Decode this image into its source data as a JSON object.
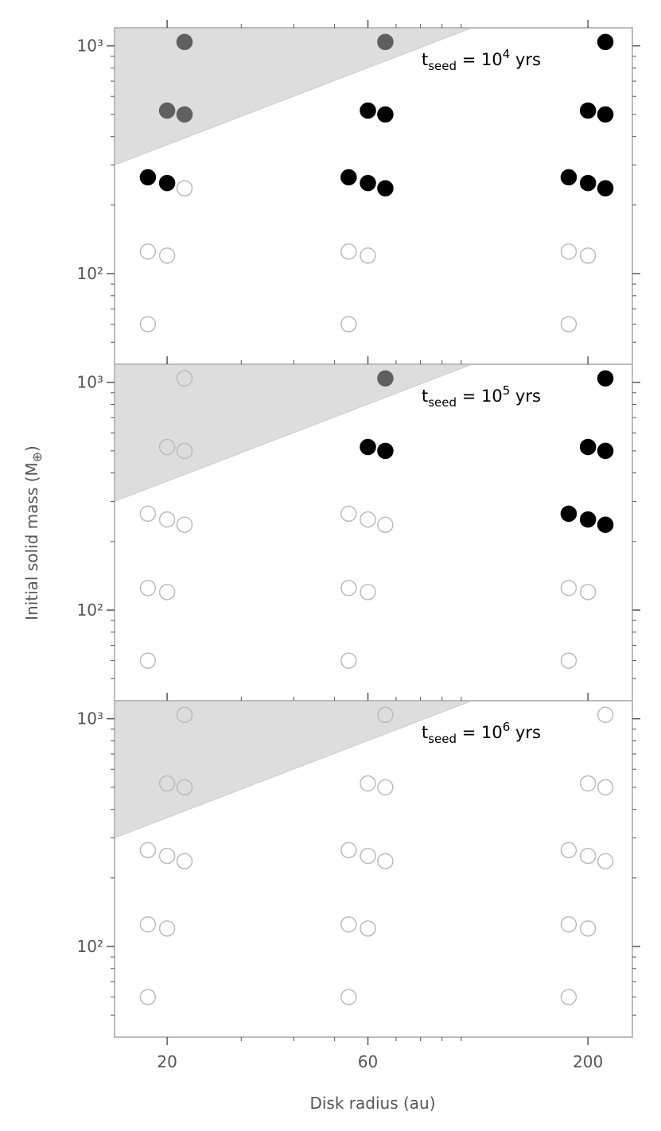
{
  "chart_data": [
    {
      "type": "scatter",
      "xlog": true,
      "ylog": true,
      "xlim": [
        15,
        255
      ],
      "ylim": [
        40,
        1200
      ],
      "xticks": [
        20,
        60,
        200
      ],
      "xminorticks": [
        30,
        40,
        50,
        70,
        80,
        90,
        100
      ],
      "yticks": [
        {
          "value": 100,
          "label": "10²"
        },
        {
          "value": 1000,
          "label": "10³"
        }
      ],
      "yminorticks": [
        50,
        60,
        70,
        80,
        90,
        200,
        300,
        400,
        500,
        600,
        700,
        800,
        900
      ],
      "xticklabels": false,
      "annotation": {
        "base": "t",
        "sub": "seed",
        "mid": " = 10",
        "sup": "4",
        "tail": " yrs"
      },
      "shade": {
        "x": [
          15,
          106
        ],
        "y": [
          300,
          1200
        ],
        "color": "#dddddd"
      },
      "open_edge": "#bbbbbb",
      "x": [
        18,
        18,
        18,
        20,
        20,
        20,
        22,
        22,
        22,
        54,
        54,
        54,
        60,
        60,
        60,
        66,
        66,
        66,
        180,
        180,
        180,
        200,
        200,
        200,
        220,
        220,
        220
      ],
      "y": [
        265,
        125,
        60,
        520,
        250,
        120,
        1040,
        500,
        237,
        265,
        125,
        60,
        520,
        250,
        120,
        1040,
        500,
        237,
        265,
        125,
        60,
        520,
        250,
        120,
        1040,
        500,
        237
      ],
      "fills": [
        "#000000",
        null,
        null,
        "#5f5f5f",
        "#000000",
        null,
        "#5f5f5f",
        "#5f5f5f",
        null,
        "#000000",
        null,
        null,
        "#000000",
        "#000000",
        null,
        "#5f5f5f",
        "#000000",
        "#000000",
        "#000000",
        null,
        null,
        "#000000",
        "#000000",
        null,
        "#000000",
        "#000000",
        "#000000"
      ]
    },
    {
      "type": "scatter",
      "xlog": true,
      "ylog": true,
      "xlim": [
        15,
        255
      ],
      "ylim": [
        40,
        1200
      ],
      "xticks": [
        20,
        60,
        200
      ],
      "xminorticks": [
        30,
        40,
        50,
        70,
        80,
        90,
        100
      ],
      "yticks": [
        {
          "value": 100,
          "label": "10²"
        },
        {
          "value": 1000,
          "label": "10³"
        }
      ],
      "yminorticks": [
        50,
        60,
        70,
        80,
        90,
        200,
        300,
        400,
        500,
        600,
        700,
        800,
        900
      ],
      "xticklabels": false,
      "ylabel": {
        "text": "Initial solid mass (M",
        "sub": "⊕",
        "tail": ")"
      },
      "annotation": {
        "base": "t",
        "sub": "seed",
        "mid": " = 10",
        "sup": "5",
        "tail": " yrs"
      },
      "shade": {
        "x": [
          15,
          106
        ],
        "y": [
          300,
          1200
        ],
        "color": "#dddddd"
      },
      "open_edge": "#bbbbbb",
      "x": [
        18,
        18,
        18,
        20,
        20,
        20,
        22,
        22,
        22,
        54,
        54,
        54,
        60,
        60,
        60,
        66,
        66,
        66,
        180,
        180,
        180,
        200,
        200,
        200,
        220,
        220,
        220
      ],
      "y": [
        265,
        125,
        60,
        520,
        250,
        120,
        1040,
        500,
        237,
        265,
        125,
        60,
        520,
        250,
        120,
        1040,
        500,
        237,
        265,
        125,
        60,
        520,
        250,
        120,
        1040,
        500,
        237
      ],
      "fills": [
        null,
        null,
        null,
        null,
        null,
        null,
        null,
        null,
        null,
        null,
        null,
        null,
        "#000000",
        null,
        null,
        "#5f5f5f",
        "#000000",
        null,
        "#000000",
        null,
        null,
        "#000000",
        "#000000",
        null,
        "#000000",
        "#000000",
        "#000000"
      ]
    },
    {
      "type": "scatter",
      "xlog": true,
      "ylog": true,
      "xlim": [
        15,
        255
      ],
      "ylim": [
        40,
        1200
      ],
      "xticks": [
        20,
        60,
        200
      ],
      "xminorticks": [
        30,
        40,
        50,
        70,
        80,
        90,
        100
      ],
      "yticks": [
        {
          "value": 100,
          "label": "10²"
        },
        {
          "value": 1000,
          "label": "10³"
        }
      ],
      "yminorticks": [
        50,
        60,
        70,
        80,
        90,
        200,
        300,
        400,
        500,
        600,
        700,
        800,
        900
      ],
      "xticklabels": true,
      "xlabel": "Disk radius (au)",
      "annotation": {
        "base": "t",
        "sub": "seed",
        "mid": " = 10",
        "sup": "6",
        "tail": " yrs"
      },
      "shade": {
        "x": [
          15,
          106
        ],
        "y": [
          300,
          1200
        ],
        "color": "#dddddd"
      },
      "open_edge": "#bbbbbb",
      "x": [
        18,
        18,
        18,
        20,
        20,
        20,
        22,
        22,
        22,
        54,
        54,
        54,
        60,
        60,
        60,
        66,
        66,
        66,
        180,
        180,
        180,
        200,
        200,
        200,
        220,
        220,
        220
      ],
      "y": [
        265,
        125,
        60,
        520,
        250,
        120,
        1040,
        500,
        237,
        265,
        125,
        60,
        520,
        250,
        120,
        1040,
        500,
        237,
        265,
        125,
        60,
        520,
        250,
        120,
        1040,
        500,
        237
      ],
      "fills": [
        null,
        null,
        null,
        null,
        null,
        null,
        null,
        null,
        null,
        null,
        null,
        null,
        null,
        null,
        null,
        null,
        null,
        null,
        null,
        null,
        null,
        null,
        null,
        null,
        null,
        null,
        null
      ]
    }
  ]
}
